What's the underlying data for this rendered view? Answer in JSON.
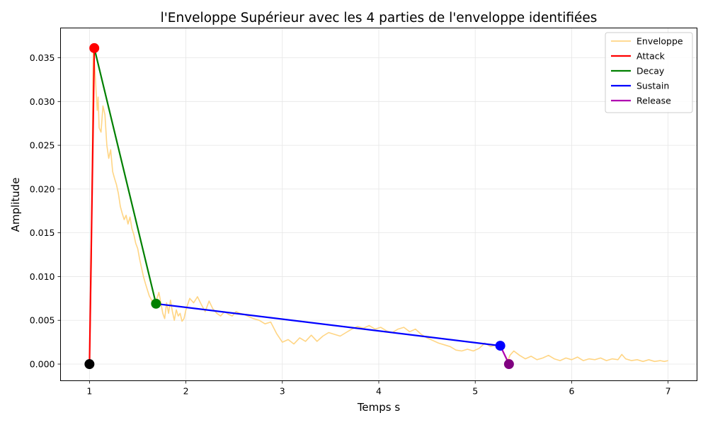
{
  "chart_data": {
    "type": "line",
    "title": "l'Enveloppe Supérieur avec les 4 parties de l'enveloppe identifiées",
    "xlabel": "Temps s",
    "ylabel": "Amplitude",
    "xlim": [
      0.7,
      7.3
    ],
    "ylim": [
      -0.0019,
      0.0384
    ],
    "xticks": [
      1,
      2,
      3,
      4,
      5,
      6,
      7
    ],
    "yticks": [
      0.0,
      0.005,
      0.01,
      0.015,
      0.02,
      0.025,
      0.03,
      0.035
    ],
    "ytick_labels": [
      "0.000",
      "0.005",
      "0.010",
      "0.015",
      "0.020",
      "0.025",
      "0.030",
      "0.035"
    ],
    "grid": true,
    "legend_position": "top-right",
    "series": [
      {
        "name": "Enveloppe",
        "color": "#ffd584",
        "points": [
          [
            1.0,
            0.0
          ],
          [
            1.02,
            0.012
          ],
          [
            1.04,
            0.0366
          ],
          [
            1.06,
            0.033
          ],
          [
            1.08,
            0.029
          ],
          [
            1.09,
            0.0305
          ],
          [
            1.1,
            0.027
          ],
          [
            1.12,
            0.0265
          ],
          [
            1.14,
            0.0295
          ],
          [
            1.16,
            0.0285
          ],
          [
            1.18,
            0.025
          ],
          [
            1.2,
            0.0235
          ],
          [
            1.22,
            0.0245
          ],
          [
            1.24,
            0.022
          ],
          [
            1.26,
            0.0212
          ],
          [
            1.28,
            0.0205
          ],
          [
            1.3,
            0.0195
          ],
          [
            1.32,
            0.018
          ],
          [
            1.34,
            0.0172
          ],
          [
            1.36,
            0.0165
          ],
          [
            1.38,
            0.017
          ],
          [
            1.4,
            0.016
          ],
          [
            1.42,
            0.0168
          ],
          [
            1.44,
            0.0155
          ],
          [
            1.46,
            0.0148
          ],
          [
            1.48,
            0.0138
          ],
          [
            1.5,
            0.0132
          ],
          [
            1.52,
            0.012
          ],
          [
            1.54,
            0.011
          ],
          [
            1.56,
            0.01
          ],
          [
            1.58,
            0.0092
          ],
          [
            1.6,
            0.0085
          ],
          [
            1.62,
            0.0078
          ],
          [
            1.64,
            0.0074
          ],
          [
            1.66,
            0.007
          ],
          [
            1.68,
            0.0069
          ],
          [
            1.7,
            0.0075
          ],
          [
            1.72,
            0.0082
          ],
          [
            1.74,
            0.007
          ],
          [
            1.76,
            0.0058
          ],
          [
            1.78,
            0.0052
          ],
          [
            1.8,
            0.007
          ],
          [
            1.82,
            0.0058
          ],
          [
            1.84,
            0.0073
          ],
          [
            1.86,
            0.006
          ],
          [
            1.88,
            0.005
          ],
          [
            1.9,
            0.0062
          ],
          [
            1.92,
            0.0055
          ],
          [
            1.94,
            0.0058
          ],
          [
            1.96,
            0.0049
          ],
          [
            1.98,
            0.0052
          ],
          [
            2.0,
            0.0062
          ],
          [
            2.04,
            0.0075
          ],
          [
            2.08,
            0.007
          ],
          [
            2.12,
            0.0077
          ],
          [
            2.16,
            0.0068
          ],
          [
            2.2,
            0.006
          ],
          [
            2.24,
            0.0072
          ],
          [
            2.28,
            0.0063
          ],
          [
            2.32,
            0.0058
          ],
          [
            2.36,
            0.0055
          ],
          [
            2.4,
            0.006
          ],
          [
            2.44,
            0.0057
          ],
          [
            2.48,
            0.0055
          ],
          [
            2.52,
            0.006
          ],
          [
            2.56,
            0.0058
          ],
          [
            2.6,
            0.0057
          ],
          [
            2.64,
            0.0055
          ],
          [
            2.7,
            0.0052
          ],
          [
            2.76,
            0.005
          ],
          [
            2.82,
            0.0046
          ],
          [
            2.88,
            0.0048
          ],
          [
            2.94,
            0.0035
          ],
          [
            3.0,
            0.0025
          ],
          [
            3.06,
            0.0028
          ],
          [
            3.12,
            0.0023
          ],
          [
            3.18,
            0.003
          ],
          [
            3.24,
            0.0026
          ],
          [
            3.3,
            0.0033
          ],
          [
            3.36,
            0.0026
          ],
          [
            3.42,
            0.0032
          ],
          [
            3.48,
            0.0036
          ],
          [
            3.54,
            0.0034
          ],
          [
            3.6,
            0.0032
          ],
          [
            3.66,
            0.0036
          ],
          [
            3.72,
            0.004
          ],
          [
            3.78,
            0.0043
          ],
          [
            3.84,
            0.0041
          ],
          [
            3.9,
            0.0044
          ],
          [
            3.96,
            0.004
          ],
          [
            4.02,
            0.0042
          ],
          [
            4.08,
            0.0038
          ],
          [
            4.14,
            0.0036
          ],
          [
            4.2,
            0.004
          ],
          [
            4.26,
            0.0042
          ],
          [
            4.32,
            0.0037
          ],
          [
            4.38,
            0.004
          ],
          [
            4.44,
            0.0034
          ],
          [
            4.5,
            0.003
          ],
          [
            4.56,
            0.0027
          ],
          [
            4.62,
            0.0024
          ],
          [
            4.68,
            0.0022
          ],
          [
            4.74,
            0.002
          ],
          [
            4.8,
            0.0016
          ],
          [
            4.86,
            0.0015
          ],
          [
            4.92,
            0.0017
          ],
          [
            4.98,
            0.0015
          ],
          [
            5.04,
            0.0018
          ],
          [
            5.1,
            0.0024
          ],
          [
            5.16,
            0.002
          ],
          [
            5.22,
            0.0022
          ],
          [
            5.26,
            0.0021
          ],
          [
            5.3,
            0.0012
          ],
          [
            5.34,
            0.0004
          ],
          [
            5.36,
            0.001
          ],
          [
            5.4,
            0.0015
          ],
          [
            5.46,
            0.001
          ],
          [
            5.52,
            0.0006
          ],
          [
            5.58,
            0.0009
          ],
          [
            5.64,
            0.0005
          ],
          [
            5.7,
            0.0007
          ],
          [
            5.76,
            0.001
          ],
          [
            5.82,
            0.0006
          ],
          [
            5.88,
            0.0004
          ],
          [
            5.94,
            0.0007
          ],
          [
            6.0,
            0.0005
          ],
          [
            6.06,
            0.0008
          ],
          [
            6.12,
            0.0004
          ],
          [
            6.18,
            0.0006
          ],
          [
            6.24,
            0.0005
          ],
          [
            6.3,
            0.0007
          ],
          [
            6.36,
            0.0004
          ],
          [
            6.42,
            0.0006
          ],
          [
            6.48,
            0.0005
          ],
          [
            6.52,
            0.0011
          ],
          [
            6.56,
            0.0006
          ],
          [
            6.62,
            0.0004
          ],
          [
            6.68,
            0.0005
          ],
          [
            6.74,
            0.0003
          ],
          [
            6.8,
            0.0005
          ],
          [
            6.86,
            0.0003
          ],
          [
            6.92,
            0.0004
          ],
          [
            6.96,
            0.0003
          ],
          [
            7.0,
            0.0004
          ]
        ]
      },
      {
        "name": "Attack",
        "color": "#ff0000",
        "points": [
          [
            1.0,
            0.0
          ],
          [
            1.05,
            0.0361
          ]
        ]
      },
      {
        "name": "Decay",
        "color": "#008000",
        "points": [
          [
            1.05,
            0.0361
          ],
          [
            1.69,
            0.0069
          ]
        ]
      },
      {
        "name": "Sustain",
        "color": "#0000ff",
        "points": [
          [
            1.69,
            0.0069
          ],
          [
            5.26,
            0.0021
          ]
        ]
      },
      {
        "name": "Release",
        "color": "#b000b0",
        "points": [
          [
            5.26,
            0.0021
          ],
          [
            5.35,
            0.0
          ]
        ]
      }
    ],
    "markers": [
      {
        "x": 1.0,
        "y": 0.0,
        "color": "#000000"
      },
      {
        "x": 1.05,
        "y": 0.0361,
        "color": "#ff0000"
      },
      {
        "x": 1.69,
        "y": 0.0069,
        "color": "#008000"
      },
      {
        "x": 5.26,
        "y": 0.0021,
        "color": "#0000ff"
      },
      {
        "x": 5.35,
        "y": 0.0,
        "color": "#800080"
      }
    ]
  }
}
